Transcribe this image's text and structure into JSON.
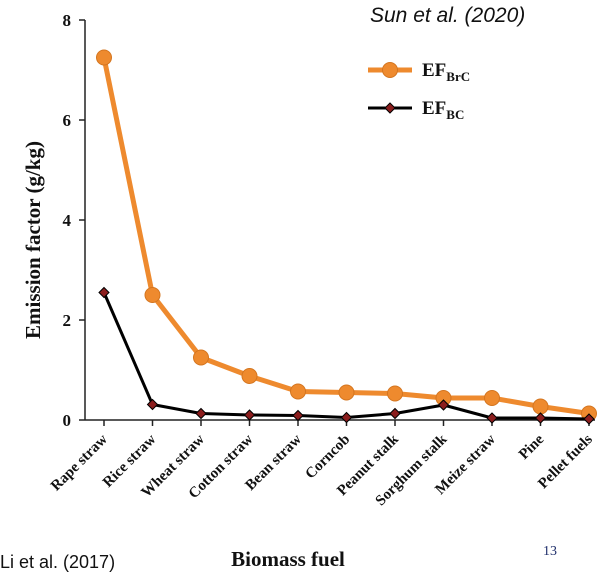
{
  "citation": "Sun et al. (2020)",
  "footer_text": "Li et al. (2017)",
  "page_number": "13",
  "chart_data": {
    "type": "line",
    "xlabel": "Biomass fuel",
    "ylabel": "Emission factor (g/kg)",
    "ylim": [
      0,
      8
    ],
    "yticks": [
      "0",
      "2",
      "4",
      "6",
      "8"
    ],
    "categories": [
      "Rape straw",
      "Rice straw",
      "Wheat straw",
      "Cotton straw",
      "Bean straw",
      "Corncob",
      "Peanut stalk",
      "Sorghum stalk",
      "Meize straw",
      "Pine",
      "Pellet fuels"
    ],
    "legend_position": "top-right",
    "grid": false,
    "series": [
      {
        "name": "EF_BrC",
        "legend_main": "EF",
        "legend_sub": "BrC",
        "color": "#ee8a2e",
        "marker": "circle",
        "values": [
          7.25,
          2.5,
          1.25,
          0.88,
          0.57,
          0.55,
          0.53,
          0.44,
          0.44,
          0.27,
          0.13
        ]
      },
      {
        "name": "EF_BC",
        "legend_main": "EF",
        "legend_sub": "BC",
        "color": "#000000",
        "marker": "diamond",
        "marker_fill": "#8b1d1d",
        "values": [
          2.55,
          0.31,
          0.13,
          0.1,
          0.09,
          0.05,
          0.13,
          0.3,
          0.04,
          0.04,
          0.02
        ]
      }
    ]
  }
}
